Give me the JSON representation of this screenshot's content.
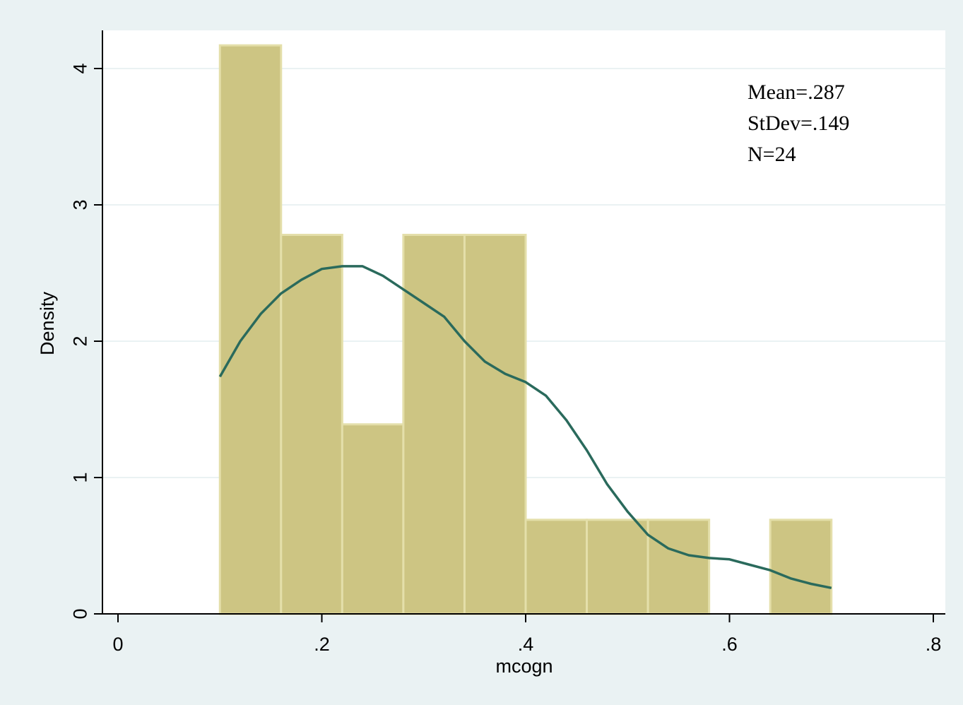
{
  "chart_data": {
    "type": "bar",
    "subtype": "histogram",
    "xlabel": "mcogn",
    "ylabel": "Density",
    "xlim": [
      -0.02,
      0.8
    ],
    "ylim": [
      0,
      4.4
    ],
    "x_ticks": [
      0,
      0.2,
      0.4,
      0.6,
      0.8
    ],
    "x_tick_labels": [
      "0",
      ".2",
      ".4",
      ".6",
      ".8"
    ],
    "y_ticks": [
      0,
      1,
      2,
      3,
      4
    ],
    "y_tick_labels": [
      "0",
      "1",
      "2",
      "3",
      "4"
    ],
    "grid": true,
    "bins": [
      {
        "x0": 0.1,
        "x1": 0.16,
        "density": 4.17
      },
      {
        "x0": 0.16,
        "x1": 0.22,
        "density": 2.78
      },
      {
        "x0": 0.22,
        "x1": 0.28,
        "density": 1.39
      },
      {
        "x0": 0.28,
        "x1": 0.34,
        "density": 2.78
      },
      {
        "x0": 0.34,
        "x1": 0.4,
        "density": 2.78
      },
      {
        "x0": 0.4,
        "x1": 0.46,
        "density": 0.69
      },
      {
        "x0": 0.46,
        "x1": 0.52,
        "density": 0.69
      },
      {
        "x0": 0.52,
        "x1": 0.58,
        "density": 0.69
      },
      {
        "x0": 0.58,
        "x1": 0.64,
        "density": 0
      },
      {
        "x0": 0.64,
        "x1": 0.7,
        "density": 0.69
      }
    ],
    "kde": {
      "x": [
        0.1,
        0.12,
        0.14,
        0.16,
        0.18,
        0.2,
        0.22,
        0.24,
        0.26,
        0.28,
        0.3,
        0.32,
        0.34,
        0.36,
        0.38,
        0.4,
        0.42,
        0.44,
        0.46,
        0.48,
        0.5,
        0.52,
        0.54,
        0.56,
        0.58,
        0.6,
        0.62,
        0.64,
        0.66,
        0.68,
        0.7
      ],
      "y": [
        1.74,
        2.0,
        2.2,
        2.35,
        2.45,
        2.53,
        2.55,
        2.55,
        2.48,
        2.38,
        2.28,
        2.18,
        2.0,
        1.85,
        1.76,
        1.7,
        1.6,
        1.42,
        1.2,
        0.95,
        0.75,
        0.58,
        0.48,
        0.43,
        0.41,
        0.4,
        0.36,
        0.32,
        0.26,
        0.22,
        0.19
      ]
    },
    "annotations": [
      "Mean=.287",
      "StDev=.149",
      "N=24"
    ],
    "colors": {
      "outer_background": "#eaf2f3",
      "plot_background": "#ffffff",
      "bar_fill": "#cdc583",
      "bar_edge": "#e4dfaa",
      "kde_line": "#2a6a5c",
      "grid": "#eaf2f3",
      "axis": "#000000"
    }
  }
}
